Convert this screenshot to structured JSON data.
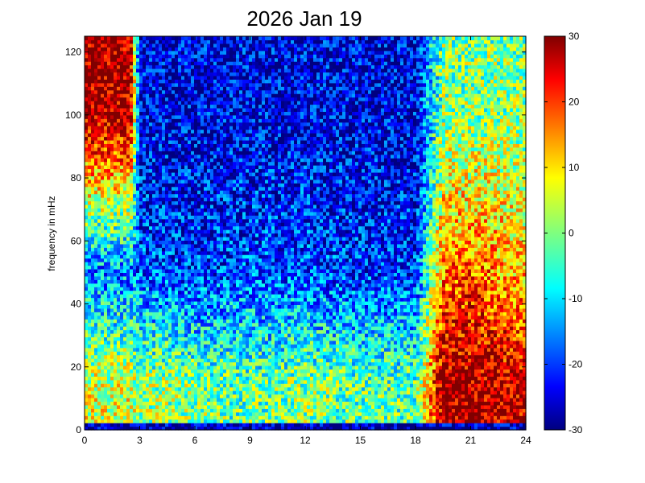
{
  "chart_data": {
    "type": "heatmap",
    "title": "2026 Jan 19",
    "xlabel": "",
    "ylabel": "frequency in mHz",
    "xlim": [
      0,
      24
    ],
    "ylim": [
      0,
      125
    ],
    "x_ticks": [
      "0",
      "3",
      "6",
      "9",
      "12",
      "15",
      "18",
      "21",
      "24"
    ],
    "y_ticks": [
      "0",
      "20",
      "40",
      "60",
      "80",
      "100",
      "120"
    ],
    "colorbar": {
      "colormap": "jet",
      "range": [
        -30,
        30
      ],
      "ticks": [
        "-30",
        "-20",
        "-10",
        "0",
        "10",
        "20",
        "30"
      ]
    },
    "grid": false,
    "value_description": {
      "x_hours": [
        0,
        2.5,
        3,
        6,
        9,
        12,
        15,
        18,
        19.5,
        21,
        24
      ],
      "low_freq_band_0_30mHz_approx_dB": [
        5,
        5,
        2,
        0,
        -2,
        0,
        -2,
        -2,
        28,
        28,
        26
      ],
      "mid_freq_40_60mHz_approx_dB": [
        -15,
        -15,
        -18,
        -20,
        -18,
        -18,
        -20,
        -20,
        15,
        18,
        10
      ],
      "high_freq_80_125mHz_approx_dB": [
        28,
        28,
        -24,
        -24,
        -24,
        -24,
        -24,
        -24,
        0,
        0,
        0
      ]
    }
  }
}
